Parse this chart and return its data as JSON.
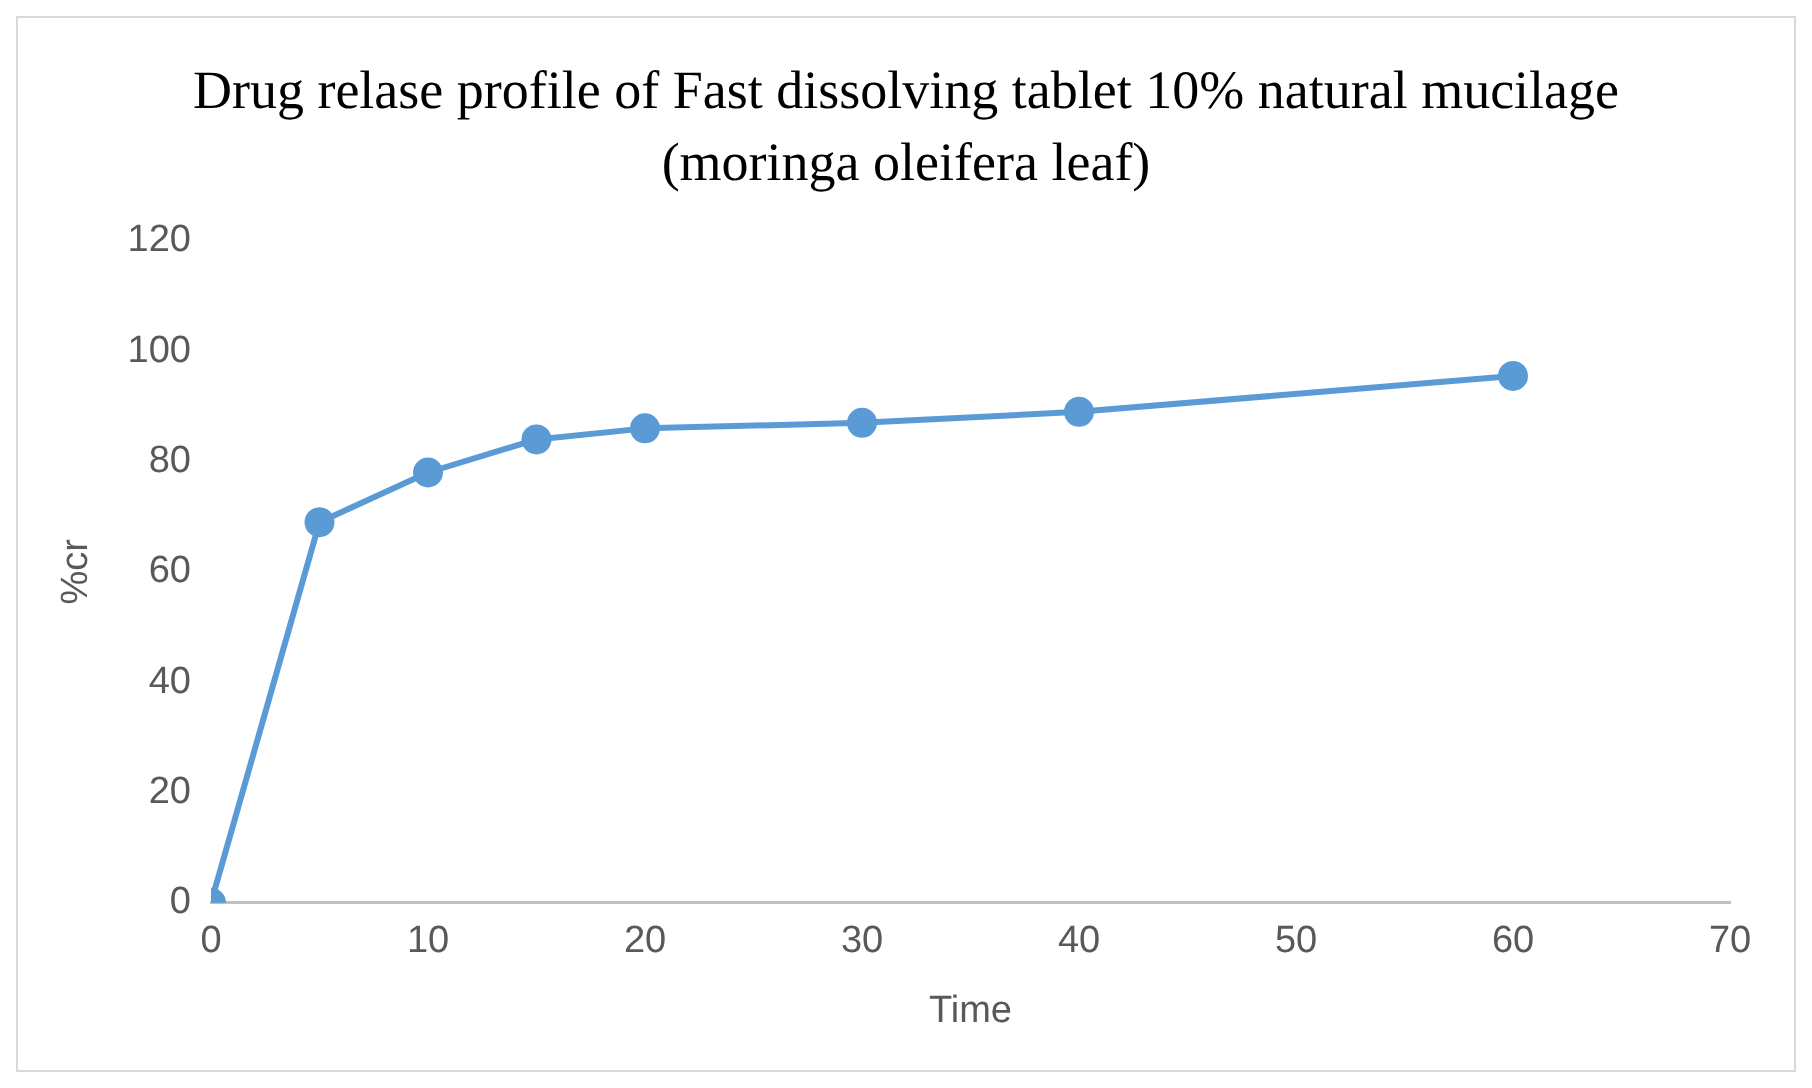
{
  "chart_data": {
    "type": "line",
    "title": "Drug relase profile of Fast dissolving tablet 10% natural mucilage (moringa oleifera leaf)",
    "xlabel": "Time",
    "ylabel": "%cr",
    "x": [
      0,
      5,
      10,
      15,
      20,
      30,
      40,
      60
    ],
    "series": [
      {
        "color": "#5b9bd5",
        "values": [
          0,
          69,
          78,
          84,
          86,
          87,
          89,
          95.5
        ]
      }
    ],
    "xlim": [
      0,
      70
    ],
    "xticks": [
      0,
      10,
      20,
      30,
      40,
      50,
      60,
      70
    ],
    "ylim": [
      0,
      120
    ],
    "yticks": [
      0,
      20,
      40,
      60,
      80,
      100,
      120
    ],
    "grid": false,
    "legend": false,
    "marker": "circle",
    "line_style": "solid"
  }
}
